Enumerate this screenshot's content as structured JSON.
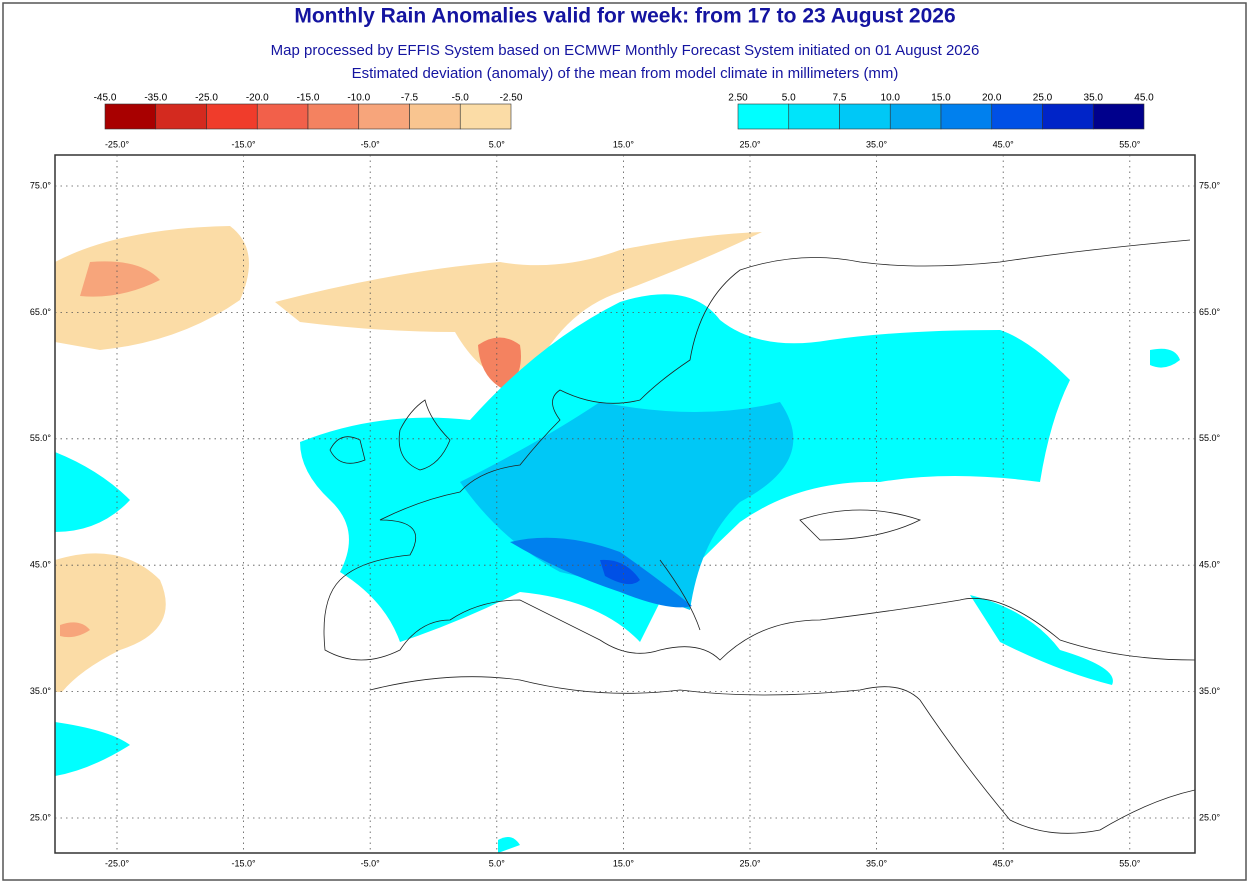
{
  "header": {
    "title": "Monthly Rain Anomalies valid for week: from 17 to 23 August 2026",
    "subtitle": "Map processed by EFFIS System based on ECMWF Monthly Forecast System initiated on 01 August 2026",
    "description": "Estimated deviation (anomaly) of the mean from model climate in millimeters (mm)"
  },
  "legend": {
    "negative": {
      "labels": [
        "-45.0",
        "-35.0",
        "-25.0",
        "-20.0",
        "-15.0",
        "-10.0",
        "-7.5",
        "-5.0",
        "-2.50"
      ],
      "colors": [
        "#a80000",
        "#d42a1f",
        "#f03c2b",
        "#f2604a",
        "#f48260",
        "#f7a57b",
        "#f9c590",
        "#fbdca6"
      ]
    },
    "positive": {
      "labels": [
        "2.50",
        "5.0",
        "7.5",
        "10.0",
        "15.0",
        "20.0",
        "25.0",
        "35.0",
        "45.0"
      ],
      "colors": [
        "#00ffff",
        "#00e4fa",
        "#00c8f6",
        "#00a8f0",
        "#0080ee",
        "#0050e6",
        "#0024c8",
        "#00008c"
      ]
    }
  },
  "map": {
    "longitude_labels": [
      "-25.0°",
      "-15.0°",
      "-5.0°",
      "5.0°",
      "15.0°",
      "25.0°",
      "35.0°",
      "45.0°",
      "55.0°"
    ],
    "latitude_labels": [
      "75.0°",
      "65.0°",
      "55.0°",
      "45.0°",
      "35.0°",
      "25.0°"
    ]
  }
}
